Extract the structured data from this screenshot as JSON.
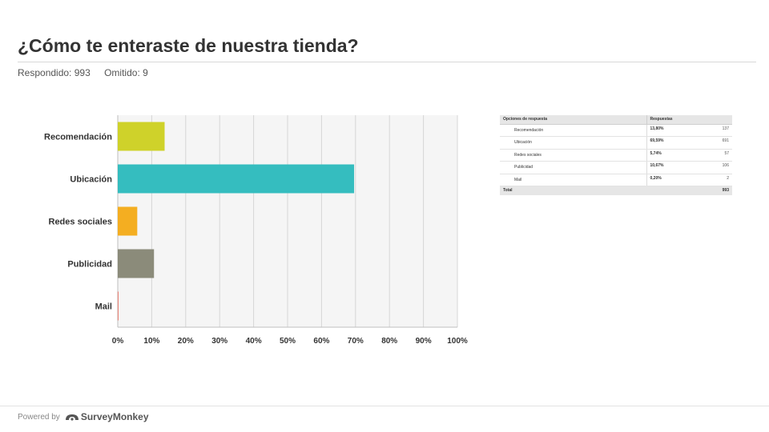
{
  "header": {
    "title": "¿Cómo te enteraste de nuestra tienda?",
    "answered": "Respondido: 993",
    "skipped": "Omitido: 9"
  },
  "chart_data": {
    "type": "bar",
    "orientation": "horizontal",
    "categories": [
      "Recomendación",
      "Ubicación",
      "Redes sociales",
      "Publicidad",
      "Mail"
    ],
    "values": [
      13.8,
      69.59,
      5.74,
      10.67,
      0.2
    ],
    "colors": [
      "#cfd22a",
      "#35bdbf",
      "#f4ae21",
      "#8b8b7a",
      "#e86c5d"
    ],
    "x_ticks": [
      "0%",
      "10%",
      "20%",
      "30%",
      "40%",
      "50%",
      "60%",
      "70%",
      "80%",
      "90%",
      "100%"
    ],
    "xlim": [
      0,
      100
    ],
    "grid": true
  },
  "table": {
    "col_option": "Opciones de respuesta",
    "col_responses": "Respuestas",
    "rows": [
      {
        "option": "Recomendación",
        "pct": "13,80%",
        "count": "137"
      },
      {
        "option": "Ubicación",
        "pct": "69,59%",
        "count": "691"
      },
      {
        "option": "Redes sociales",
        "pct": "5,74%",
        "count": "57"
      },
      {
        "option": "Publicidad",
        "pct": "10,67%",
        "count": "106"
      },
      {
        "option": "Mail",
        "pct": "0,20%",
        "count": "2"
      }
    ],
    "total_label": "Total",
    "total_value": "993"
  },
  "footer": {
    "powered_by": "Powered by",
    "brand": "SurveyMonkey"
  }
}
